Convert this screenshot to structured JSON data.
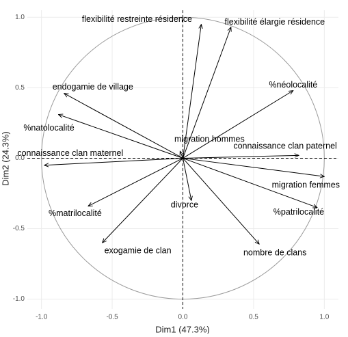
{
  "chart_data": {
    "type": "pca",
    "xlabel": "Dim1 (47.3%)",
    "ylabel": "Dim2 (24.3%)",
    "labels": [
      "flexibilité restreinte résidence",
      "flexibilité élargie résidence",
      "endogamie de village",
      "%natolocalité",
      "connaissance clan maternel",
      "%néolocalité",
      "migration hommes",
      "connaissance clan paternel",
      "migration femmes",
      "%patrilocalité",
      "nombre de clans",
      "divorce",
      "%matrilocalité",
      "exogamie de clan"
    ],
    "x": [
      0.13,
      0.34,
      -0.84,
      -0.88,
      -0.98,
      0.78,
      -0.02,
      0.82,
      1.0,
      0.95,
      0.54,
      0.06,
      -0.67,
      -0.57
    ],
    "y": [
      0.95,
      0.93,
      0.46,
      0.31,
      -0.05,
      0.48,
      0.05,
      0.02,
      -0.13,
      -0.35,
      -0.61,
      -0.3,
      -0.34,
      -0.6
    ],
    "color": "#000000",
    "xlim": [
      -1.1,
      1.1
    ],
    "ylim": [
      -1.07,
      1.05
    ],
    "xticks": [
      {
        "value": -1,
        "label": "-1.0"
      },
      {
        "value": -0.5,
        "label": "-0.5"
      },
      {
        "value": 0,
        "label": "0.0"
      },
      {
        "value": 0.5,
        "label": "0.5"
      },
      {
        "value": 1,
        "label": "1.0"
      }
    ],
    "yticks": [
      {
        "value": -1,
        "label": "-1.0"
      },
      {
        "value": -0.5,
        "label": "-0.5"
      },
      {
        "value": 0,
        "label": "0.0"
      },
      {
        "value": 0.5,
        "label": "0.5"
      },
      {
        "value": 1,
        "label": "1.0"
      }
    ],
    "grid": true
  }
}
